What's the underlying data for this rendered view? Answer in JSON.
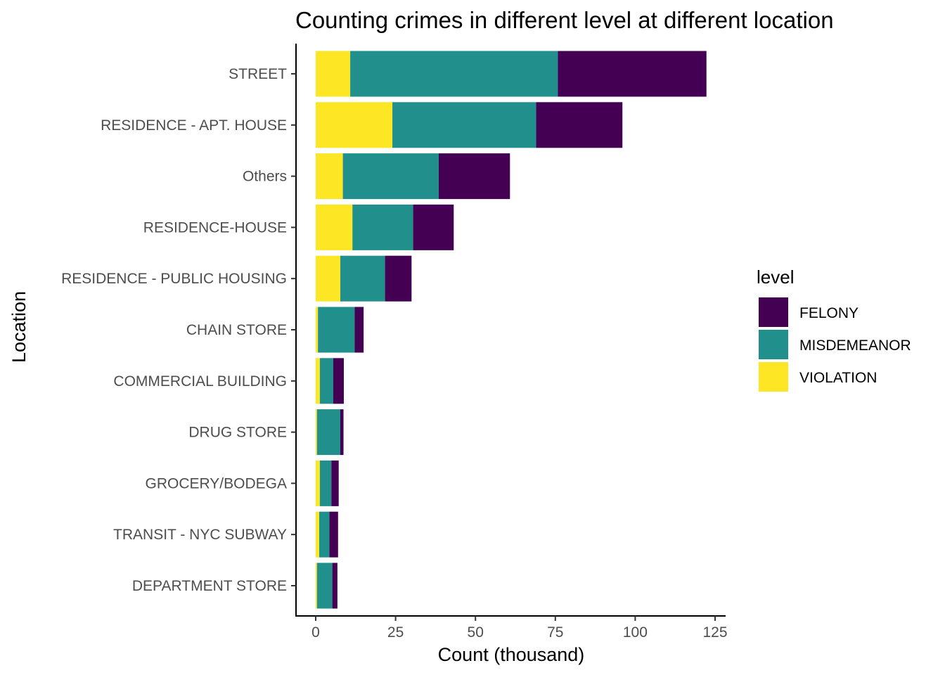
{
  "chart_data": {
    "type": "bar",
    "orientation": "horizontal",
    "stacked": true,
    "title": "Counting crimes in different level at different location",
    "xlabel": "Count (thousand)",
    "ylabel": "Location",
    "xlim": [
      0,
      125
    ],
    "xticks": [
      "0",
      "25",
      "50",
      "75",
      "100",
      "125"
    ],
    "categories": [
      "STREET",
      "RESIDENCE - APT. HOUSE",
      "Others",
      "RESIDENCE-HOUSE",
      "RESIDENCE - PUBLIC HOUSING",
      "CHAIN STORE",
      "COMMERCIAL BUILDING",
      "DRUG STORE",
      "GROCERY/BODEGA",
      "TRANSIT - NYC SUBWAY",
      "DEPARTMENT STORE"
    ],
    "legend_title": "level",
    "legend_position": "right",
    "grid": false,
    "series": [
      {
        "name": "VIOLATION",
        "color": "#FDE725",
        "values": [
          10.8,
          24.0,
          8.5,
          11.5,
          7.7,
          0.7,
          1.3,
          0.4,
          1.3,
          1.1,
          0.4
        ]
      },
      {
        "name": "MISDEMEANOR",
        "color": "#21908C",
        "values": [
          65.0,
          45.0,
          30.0,
          19.0,
          14.0,
          11.5,
          4.2,
          7.3,
          3.6,
          3.2,
          4.8
        ]
      },
      {
        "name": "FELONY",
        "color": "#440154",
        "values": [
          46.5,
          27.0,
          22.3,
          12.7,
          8.3,
          2.8,
          3.3,
          1.0,
          2.3,
          2.7,
          1.6
        ]
      }
    ],
    "legend_order": [
      "FELONY",
      "MISDEMEANOR",
      "VIOLATION"
    ]
  }
}
